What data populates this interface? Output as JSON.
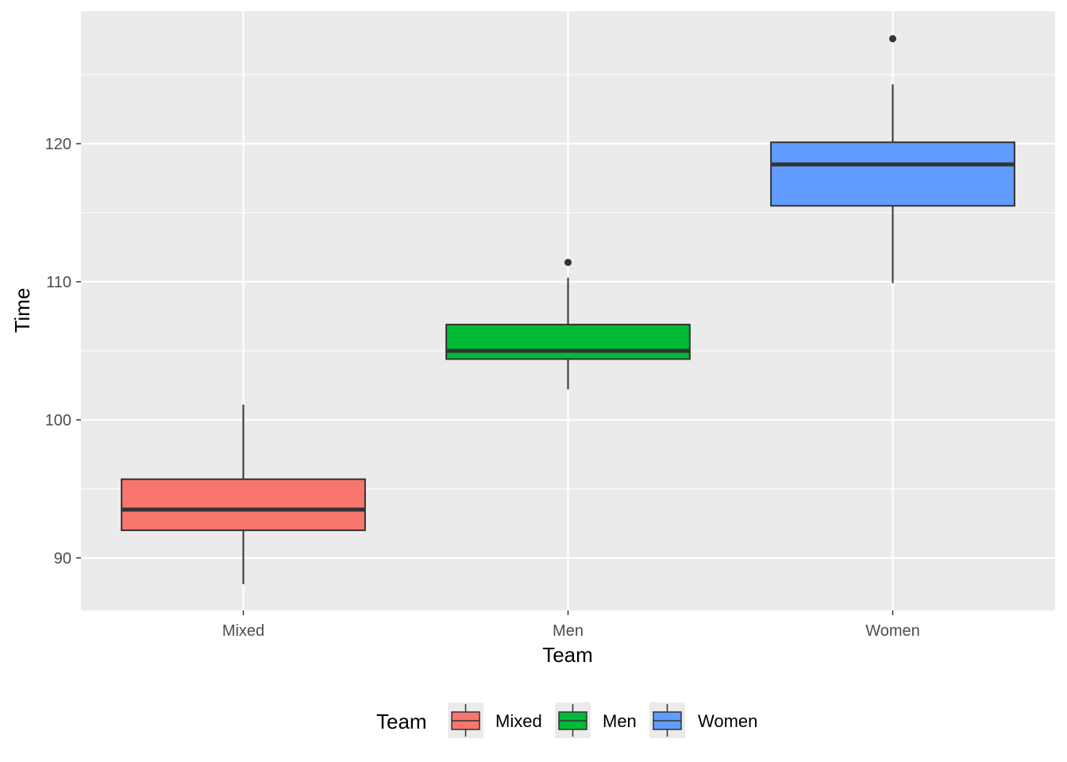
{
  "chart_data": {
    "type": "boxplot",
    "xlabel": "Team",
    "ylabel": "Time",
    "categories": [
      "Mixed",
      "Men",
      "Women"
    ],
    "ylim": [
      86.2,
      129.6
    ],
    "yticks": [
      90,
      100,
      110,
      120
    ],
    "grid": true,
    "legend": {
      "title": "Team",
      "position": "bottom",
      "entries": [
        "Mixed",
        "Men",
        "Women"
      ]
    },
    "boxes": [
      {
        "name": "Mixed",
        "whisker_low": 88.1,
        "q1": 92.0,
        "median": 93.5,
        "q3": 95.7,
        "whisker_high": 101.1,
        "outliers": [],
        "color": "#F8766D"
      },
      {
        "name": "Men",
        "whisker_low": 102.2,
        "q1": 104.4,
        "median": 105.0,
        "q3": 106.9,
        "whisker_high": 110.3,
        "outliers": [
          111.4
        ],
        "color": "#00BA38"
      },
      {
        "name": "Women",
        "whisker_low": 109.9,
        "q1": 115.5,
        "median": 118.5,
        "q3": 120.1,
        "whisker_high": 124.3,
        "outliers": [
          127.6
        ],
        "color": "#619CFF"
      }
    ],
    "colors": {
      "panel": "#EBEBEB",
      "grid": "#FFFFFF",
      "box_outline": "#333333"
    }
  }
}
